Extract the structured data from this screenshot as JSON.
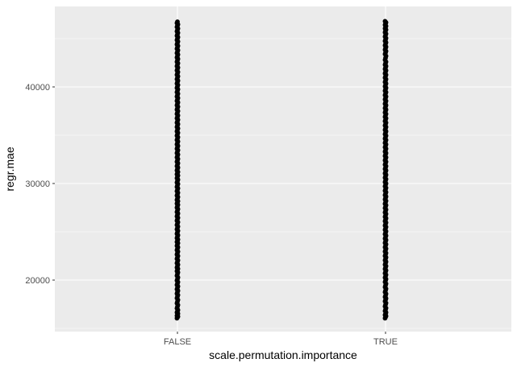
{
  "chart_data": {
    "type": "scatter",
    "title": "",
    "xlabel": "scale.permutation.importance",
    "ylabel": "regr.mae",
    "categories": [
      "FALSE",
      "TRUE"
    ],
    "yticks": [
      20000,
      30000,
      40000
    ],
    "ylim": [
      15000,
      48000
    ],
    "grid": true,
    "legend": "none",
    "colors": {
      "panel_background": "#ebebeb",
      "grid_major": "#ffffff",
      "points": "#000000"
    },
    "series": [
      {
        "category": "FALSE",
        "y_range": [
          16000,
          46900
        ],
        "values": [
          16050,
          16400,
          16900,
          17600,
          18300,
          18900,
          19500,
          20100,
          20800,
          21300,
          21900,
          22500,
          23100,
          23700,
          24200,
          24800,
          25400,
          26000,
          26600,
          27200,
          27800,
          28300,
          28900,
          29500,
          30100,
          30700,
          31200,
          31800,
          32400,
          33000,
          33600,
          34200,
          34800,
          35400,
          36000,
          36600,
          37200,
          37800,
          38400,
          39000,
          39600,
          40200,
          40800,
          41400,
          42000,
          42600,
          43200,
          43800,
          44400,
          45000,
          45600,
          46200,
          46750
        ]
      },
      {
        "category": "TRUE",
        "y_range": [
          16000,
          46900
        ],
        "values": [
          16050,
          16500,
          17100,
          17800,
          18400,
          19100,
          19800,
          20400,
          21000,
          21600,
          22200,
          22800,
          23400,
          24000,
          24600,
          25200,
          25800,
          26400,
          27000,
          27600,
          28200,
          28800,
          29400,
          30000,
          30600,
          31200,
          31800,
          32400,
          33000,
          33600,
          34200,
          34800,
          35400,
          36000,
          36600,
          37200,
          37800,
          38400,
          39000,
          39600,
          40200,
          40800,
          41400,
          42000,
          42600,
          43400,
          44000,
          44600,
          45200,
          45800,
          46300,
          46800
        ]
      }
    ]
  }
}
